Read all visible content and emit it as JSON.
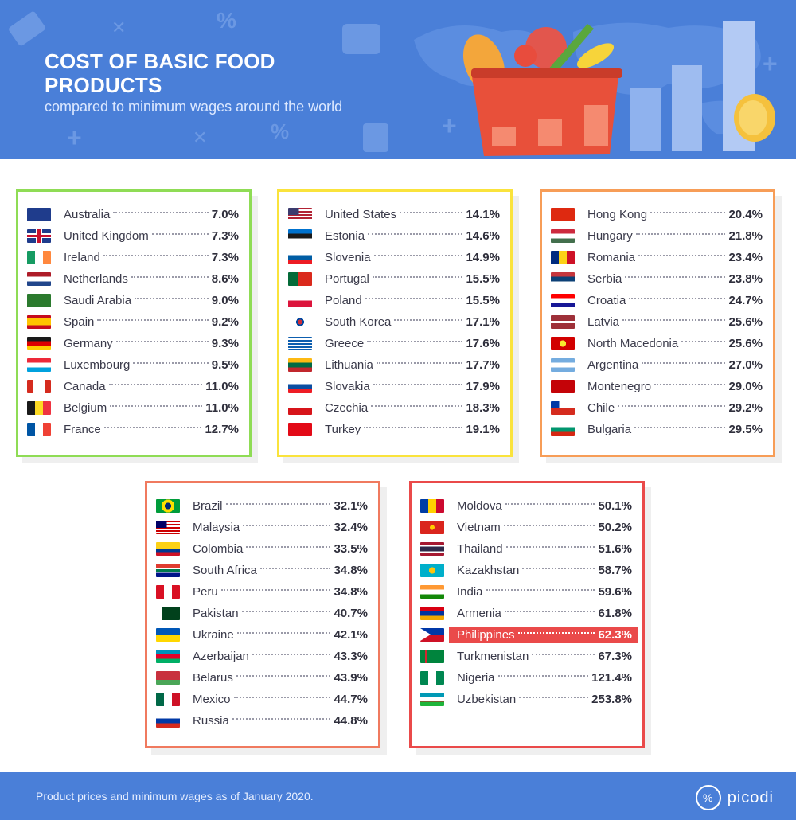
{
  "header": {
    "title": "COST OF BASIC FOOD PRODUCTS",
    "subtitle": "compared to minimum wages around the world"
  },
  "colors": {
    "green": "#8fdc55",
    "yellow": "#fae33c",
    "orange": "#f79d57",
    "coral": "#f07a5f",
    "red": "#ea4a4a",
    "highlight": "#ea4a4a"
  },
  "groups": [
    {
      "color": "#8fdc55",
      "items": [
        {
          "country": "Australia",
          "value": "7.0%",
          "flag": "au"
        },
        {
          "country": "United Kingdom",
          "value": "7.3%",
          "flag": "gb"
        },
        {
          "country": "Ireland",
          "value": "7.3%",
          "flag": "ie"
        },
        {
          "country": "Netherlands",
          "value": "8.6%",
          "flag": "nl"
        },
        {
          "country": "Saudi Arabia",
          "value": "9.0%",
          "flag": "sa"
        },
        {
          "country": "Spain",
          "value": "9.2%",
          "flag": "es"
        },
        {
          "country": "Germany",
          "value": "9.3%",
          "flag": "de"
        },
        {
          "country": "Luxembourg",
          "value": "9.5%",
          "flag": "lu"
        },
        {
          "country": "Canada",
          "value": "11.0%",
          "flag": "ca"
        },
        {
          "country": "Belgium",
          "value": "11.0%",
          "flag": "be"
        },
        {
          "country": "France",
          "value": "12.7%",
          "flag": "fr"
        }
      ]
    },
    {
      "color": "#fae33c",
      "items": [
        {
          "country": "United States",
          "value": "14.1%",
          "flag": "us"
        },
        {
          "country": "Estonia",
          "value": "14.6%",
          "flag": "ee"
        },
        {
          "country": "Slovenia",
          "value": "14.9%",
          "flag": "si"
        },
        {
          "country": "Portugal",
          "value": "15.5%",
          "flag": "pt"
        },
        {
          "country": "Poland",
          "value": "15.5%",
          "flag": "pl"
        },
        {
          "country": "South Korea",
          "value": "17.1%",
          "flag": "kr"
        },
        {
          "country": "Greece",
          "value": "17.6%",
          "flag": "gr"
        },
        {
          "country": "Lithuania",
          "value": "17.7%",
          "flag": "lt"
        },
        {
          "country": "Slovakia",
          "value": "17.9%",
          "flag": "sk"
        },
        {
          "country": "Czechia",
          "value": "18.3%",
          "flag": "cz"
        },
        {
          "country": "Turkey",
          "value": "19.1%",
          "flag": "tr"
        }
      ]
    },
    {
      "color": "#f79d57",
      "items": [
        {
          "country": "Hong Kong",
          "value": "20.4%",
          "flag": "hk"
        },
        {
          "country": "Hungary",
          "value": "21.8%",
          "flag": "hu"
        },
        {
          "country": "Romania",
          "value": "23.4%",
          "flag": "ro"
        },
        {
          "country": "Serbia",
          "value": "23.8%",
          "flag": "rs"
        },
        {
          "country": "Croatia",
          "value": "24.7%",
          "flag": "hr"
        },
        {
          "country": "Latvia",
          "value": "25.6%",
          "flag": "lv"
        },
        {
          "country": "North Macedonia",
          "value": "25.6%",
          "flag": "mk"
        },
        {
          "country": "Argentina",
          "value": "27.0%",
          "flag": "ar"
        },
        {
          "country": "Montenegro",
          "value": "29.0%",
          "flag": "me"
        },
        {
          "country": "Chile",
          "value": "29.2%",
          "flag": "cl"
        },
        {
          "country": "Bulgaria",
          "value": "29.5%",
          "flag": "bg"
        }
      ]
    },
    {
      "color": "#f07a5f",
      "items": [
        {
          "country": "Brazil",
          "value": "32.1%",
          "flag": "br"
        },
        {
          "country": "Malaysia",
          "value": "32.4%",
          "flag": "my"
        },
        {
          "country": "Colombia",
          "value": "33.5%",
          "flag": "co"
        },
        {
          "country": "South Africa",
          "value": "34.8%",
          "flag": "za"
        },
        {
          "country": "Peru",
          "value": "34.8%",
          "flag": "pe"
        },
        {
          "country": "Pakistan",
          "value": "40.7%",
          "flag": "pk"
        },
        {
          "country": "Ukraine",
          "value": "42.1%",
          "flag": "ua"
        },
        {
          "country": "Azerbaijan",
          "value": "43.3%",
          "flag": "az"
        },
        {
          "country": "Belarus",
          "value": "43.9%",
          "flag": "by"
        },
        {
          "country": "Mexico",
          "value": "44.7%",
          "flag": "mx"
        },
        {
          "country": "Russia",
          "value": "44.8%",
          "flag": "ru"
        }
      ]
    },
    {
      "color": "#ea4a4a",
      "items": [
        {
          "country": "Moldova",
          "value": "50.1%",
          "flag": "md"
        },
        {
          "country": "Vietnam",
          "value": "50.2%",
          "flag": "vn"
        },
        {
          "country": "Thailand",
          "value": "51.6%",
          "flag": "th"
        },
        {
          "country": "Kazakhstan",
          "value": "58.7%",
          "flag": "kz"
        },
        {
          "country": "India",
          "value": "59.6%",
          "flag": "in"
        },
        {
          "country": "Armenia",
          "value": "61.8%",
          "flag": "am"
        },
        {
          "country": "Philippines",
          "value": "62.3%",
          "flag": "ph",
          "highlight": true
        },
        {
          "country": "Turkmenistan",
          "value": "67.3%",
          "flag": "tm"
        },
        {
          "country": "Nigeria",
          "value": "121.4%",
          "flag": "ng"
        },
        {
          "country": "Uzbekistan",
          "value": "253.8%",
          "flag": "uz"
        }
      ]
    }
  ],
  "footer": {
    "note": "Product prices and minimum wages as of January 2020.",
    "brand": "picodi"
  }
}
